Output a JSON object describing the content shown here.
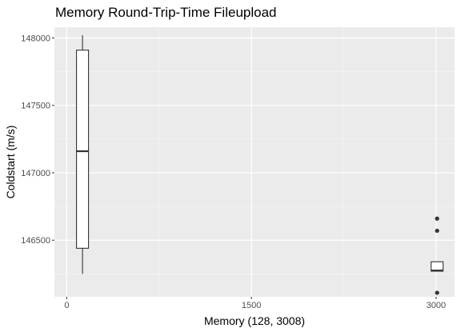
{
  "chart_data": {
    "type": "box",
    "title": "Memory Round-Trip-Time Fileupload",
    "xlabel": "Memory (128, 3008)",
    "ylabel": "Coldstart (m/s)",
    "xlim": [
      -100,
      3150
    ],
    "ylim": [
      146080,
      148080
    ],
    "x_ticks": [
      0,
      1500,
      3000
    ],
    "x_tick_labels": [
      "0",
      "1500",
      "3000"
    ],
    "y_ticks": [
      146500,
      147000,
      147500,
      148000
    ],
    "y_tick_labels": [
      "146500",
      "147000",
      "147500",
      "148000"
    ],
    "grid": true,
    "boxes": [
      {
        "x": 128,
        "whisker_low": 146250,
        "q1": 146440,
        "median": 147160,
        "q3": 147910,
        "whisker_high": 148020,
        "outliers": []
      },
      {
        "x": 3008,
        "whisker_low": 146270,
        "q1": 146270,
        "median": 146275,
        "q3": 146340,
        "whisker_high": 146340,
        "outliers": [
          146110,
          146570,
          146660
        ]
      }
    ]
  }
}
